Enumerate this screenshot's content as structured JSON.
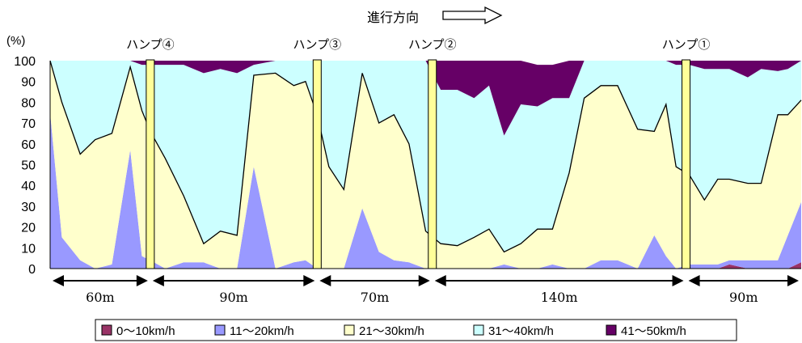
{
  "chart_data": {
    "type": "area",
    "stacked": true,
    "title": "",
    "direction_label": "進行方向",
    "y_unit": "(%)",
    "ylim": [
      0,
      100
    ],
    "yticks": [
      0,
      10,
      20,
      30,
      40,
      50,
      60,
      70,
      80,
      90,
      100
    ],
    "x_range": [
      0,
      450
    ],
    "x": [
      0,
      7,
      18,
      27,
      37,
      48,
      55,
      60,
      69,
      80,
      92,
      102,
      112,
      122,
      135,
      146,
      153,
      160,
      167,
      176,
      187,
      197,
      206,
      215,
      225,
      234,
      244,
      254,
      263,
      272,
      282,
      292,
      301,
      311,
      320,
      330,
      340,
      352,
      362,
      369,
      375,
      383,
      392,
      400,
      407,
      418,
      426,
      436,
      442,
      450
    ],
    "series": [
      {
        "name": "0〜10km/h",
        "color": "#993366",
        "values": [
          0,
          0,
          0,
          0,
          0,
          0,
          0,
          0,
          0,
          0,
          0,
          0,
          0,
          0,
          0,
          0,
          0,
          0,
          0,
          0,
          0,
          0,
          0,
          0,
          0,
          0,
          0,
          0,
          0,
          0,
          0,
          0,
          0,
          0,
          0,
          0,
          0,
          0,
          0,
          0,
          0,
          0,
          0,
          0,
          2,
          0,
          0,
          0,
          0,
          3
        ]
      },
      {
        "name": "11〜20km/h",
        "color": "#9999FF",
        "values": [
          75,
          15,
          4,
          0,
          2,
          57,
          6,
          4,
          0,
          3,
          3,
          0,
          0,
          49,
          0,
          3,
          4,
          0,
          0,
          0,
          29,
          8,
          4,
          3,
          0,
          0,
          0,
          0,
          0,
          2,
          0,
          0,
          2,
          0,
          0,
          4,
          4,
          0,
          16,
          6,
          0,
          2,
          2,
          2,
          2,
          4,
          4,
          4,
          16,
          29
        ]
      },
      {
        "name": "21〜30km/h",
        "color": "#FFFFCC",
        "values": [
          25,
          65,
          51,
          62,
          63,
          40,
          70,
          62,
          53,
          32,
          9,
          18,
          16,
          44,
          94,
          85,
          86,
          74,
          49,
          38,
          65,
          62,
          70,
          57,
          18,
          12,
          11,
          15,
          19,
          6,
          12,
          19,
          17,
          46,
          82,
          84,
          84,
          67,
          50,
          73,
          49,
          43,
          31,
          41,
          39,
          37,
          37,
          70,
          58,
          49
        ]
      },
      {
        "name": "31〜40km/h",
        "color": "#CCFFFF",
        "values": [
          0,
          20,
          45,
          38,
          35,
          3,
          22,
          32,
          45,
          63,
          82,
          78,
          78,
          5,
          6,
          12,
          10,
          26,
          51,
          62,
          6,
          30,
          26,
          40,
          82,
          74,
          75,
          67,
          69,
          56,
          67,
          59,
          63,
          36,
          18,
          12,
          12,
          33,
          34,
          21,
          49,
          53,
          63,
          53,
          53,
          51,
          55,
          21,
          22,
          19
        ]
      },
      {
        "name": "41〜50km/h",
        "color": "#660066",
        "values": [
          0,
          0,
          0,
          0,
          0,
          0,
          2,
          2,
          2,
          2,
          6,
          4,
          6,
          2,
          0,
          0,
          0,
          0,
          0,
          0,
          0,
          0,
          0,
          0,
          0,
          14,
          14,
          18,
          12,
          36,
          21,
          20,
          16,
          18,
          0,
          0,
          0,
          0,
          0,
          0,
          2,
          2,
          4,
          4,
          4,
          8,
          4,
          5,
          4,
          0
        ]
      }
    ],
    "humps": [
      {
        "label": "ハンプ④",
        "x": 60
      },
      {
        "label": "ハンプ③",
        "x": 160
      },
      {
        "label": "ハンプ②",
        "x": 229
      },
      {
        "label": "ハンプ①",
        "x": 381
      }
    ],
    "segments": [
      {
        "label": "60m",
        "from": 0,
        "to": 60
      },
      {
        "label": "90m",
        "from": 60,
        "to": 160
      },
      {
        "label": "70m",
        "from": 160,
        "to": 229
      },
      {
        "label": "140m",
        "from": 229,
        "to": 381
      },
      {
        "label": "90m",
        "from": 381,
        "to": 450
      }
    ],
    "legend_position": "bottom",
    "grid": false
  }
}
